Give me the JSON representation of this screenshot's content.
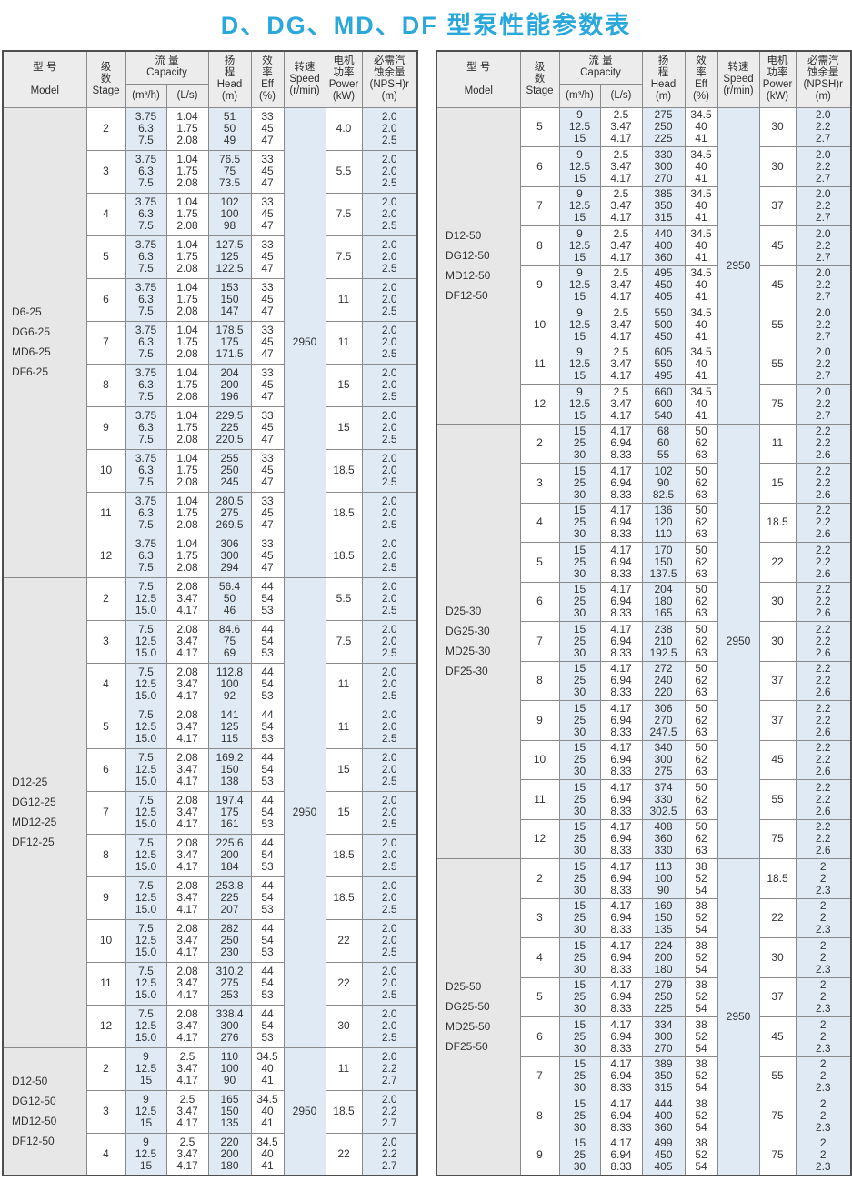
{
  "title": "D、DG、MD、DF 型泵性能参数表",
  "colors": {
    "title": "#29a8dc",
    "header_bg": "#ececec",
    "model_col_bg": "#e7e7e7",
    "shaded_col_bg": "#dfeaf5",
    "border": "#8a8a8a",
    "text": "#333333"
  },
  "header": {
    "model": "型  号\n\nModel",
    "stage": "级\n数\nStage",
    "capacity": "流 量\nCapacity",
    "unit_m3h": "(m³/h)",
    "unit_ls": "(L/s)",
    "head": "扬\n程\nHead\n(m)",
    "eff": "效\n率\nEff\n(%)",
    "speed": "转速\nSpeed\n(r/min)",
    "power": "电机\n功率\nPower\n(kW)",
    "npsh": "必需汽\n蚀余量\n(NPSH)r\n(m)"
  },
  "tables": [
    {
      "side": "left",
      "groups": [
        {
          "models": [
            "D6-25",
            "DG6-25",
            "MD6-25",
            "DF6-25"
          ],
          "speed": "2950",
          "m3h": [
            "3.75",
            "6.3",
            "7.5"
          ],
          "ls": [
            "1.04",
            "1.75",
            "2.08"
          ],
          "eff": [
            "33",
            "45",
            "47"
          ],
          "npsh": [
            "2.0",
            "2.0",
            "2.5"
          ],
          "rows": [
            {
              "stage": "2",
              "head": [
                "51",
                "50",
                "49"
              ],
              "power": "4.0"
            },
            {
              "stage": "3",
              "head": [
                "76.5",
                "75",
                "73.5"
              ],
              "power": "5.5"
            },
            {
              "stage": "4",
              "head": [
                "102",
                "100",
                "98"
              ],
              "power": "7.5"
            },
            {
              "stage": "5",
              "head": [
                "127.5",
                "125",
                "122.5"
              ],
              "power": "7.5"
            },
            {
              "stage": "6",
              "head": [
                "153",
                "150",
                "147"
              ],
              "power": "11"
            },
            {
              "stage": "7",
              "head": [
                "178.5",
                "175",
                "171.5"
              ],
              "power": "11"
            },
            {
              "stage": "8",
              "head": [
                "204",
                "200",
                "196"
              ],
              "power": "15"
            },
            {
              "stage": "9",
              "head": [
                "229.5",
                "225",
                "220.5"
              ],
              "power": "15"
            },
            {
              "stage": "10",
              "head": [
                "255",
                "250",
                "245"
              ],
              "power": "18.5"
            },
            {
              "stage": "11",
              "head": [
                "280.5",
                "275",
                "269.5"
              ],
              "power": "18.5"
            },
            {
              "stage": "12",
              "head": [
                "306",
                "300",
                "294"
              ],
              "power": "18.5"
            }
          ]
        },
        {
          "models": [
            "D12-25",
            "DG12-25",
            "MD12-25",
            "DF12-25"
          ],
          "speed": "2950",
          "m3h": [
            "7.5",
            "12.5",
            "15.0"
          ],
          "ls": [
            "2.08",
            "3.47",
            "4.17"
          ],
          "eff": [
            "44",
            "54",
            "53"
          ],
          "npsh": [
            "2.0",
            "2.0",
            "2.5"
          ],
          "rows": [
            {
              "stage": "2",
              "head": [
                "56.4",
                "50",
                "46"
              ],
              "power": "5.5"
            },
            {
              "stage": "3",
              "head": [
                "84.6",
                "75",
                "69"
              ],
              "power": "7.5"
            },
            {
              "stage": "4",
              "head": [
                "112.8",
                "100",
                "92"
              ],
              "power": "11"
            },
            {
              "stage": "5",
              "head": [
                "141",
                "125",
                "115"
              ],
              "power": "11"
            },
            {
              "stage": "6",
              "head": [
                "169.2",
                "150",
                "138"
              ],
              "power": "15"
            },
            {
              "stage": "7",
              "head": [
                "197.4",
                "175",
                "161"
              ],
              "power": "15"
            },
            {
              "stage": "8",
              "head": [
                "225.6",
                "200",
                "184"
              ],
              "power": "18.5"
            },
            {
              "stage": "9",
              "head": [
                "253.8",
                "225",
                "207"
              ],
              "power": "18.5"
            },
            {
              "stage": "10",
              "head": [
                "282",
                "250",
                "230"
              ],
              "power": "22"
            },
            {
              "stage": "11",
              "head": [
                "310.2",
                "275",
                "253"
              ],
              "power": "22"
            },
            {
              "stage": "12",
              "head": [
                "338.4",
                "300",
                "276"
              ],
              "power": "30"
            }
          ]
        },
        {
          "models": [
            "D12-50",
            "DG12-50",
            "MD12-50",
            "DF12-50"
          ],
          "speed": "2950",
          "m3h": [
            "9",
            "12.5",
            "15"
          ],
          "ls": [
            "2.5",
            "3.47",
            "4.17"
          ],
          "eff": [
            "34.5",
            "40",
            "41"
          ],
          "npsh": [
            "2.0",
            "2.2",
            "2.7"
          ],
          "rows": [
            {
              "stage": "2",
              "head": [
                "110",
                "100",
                "90"
              ],
              "power": "11"
            },
            {
              "stage": "3",
              "head": [
                "165",
                "150",
                "135"
              ],
              "power": "18.5"
            },
            {
              "stage": "4",
              "head": [
                "220",
                "200",
                "180"
              ],
              "power": "22"
            }
          ]
        }
      ]
    },
    {
      "side": "right",
      "groups": [
        {
          "models": [
            "D12-50",
            "DG12-50",
            "MD12-50",
            "DF12-50"
          ],
          "speed": "2950",
          "m3h": [
            "9",
            "12.5",
            "15"
          ],
          "ls": [
            "2.5",
            "3.47",
            "4.17"
          ],
          "eff": [
            "34.5",
            "40",
            "41"
          ],
          "npsh": [
            "2.0",
            "2.2",
            "2.7"
          ],
          "rows": [
            {
              "stage": "5",
              "head": [
                "275",
                "250",
                "225"
              ],
              "power": "30"
            },
            {
              "stage": "6",
              "head": [
                "330",
                "300",
                "270"
              ],
              "power": "30"
            },
            {
              "stage": "7",
              "head": [
                "385",
                "350",
                "315"
              ],
              "power": "37"
            },
            {
              "stage": "8",
              "head": [
                "440",
                "400",
                "360"
              ],
              "power": "45"
            },
            {
              "stage": "9",
              "head": [
                "495",
                "450",
                "405"
              ],
              "power": "45"
            },
            {
              "stage": "10",
              "head": [
                "550",
                "500",
                "450"
              ],
              "power": "55"
            },
            {
              "stage": "11",
              "head": [
                "605",
                "550",
                "495"
              ],
              "power": "55"
            },
            {
              "stage": "12",
              "head": [
                "660",
                "600",
                "540"
              ],
              "power": "75"
            }
          ]
        },
        {
          "models": [
            "D25-30",
            "DG25-30",
            "MD25-30",
            "DF25-30"
          ],
          "speed": "2950",
          "m3h": [
            "15",
            "25",
            "30"
          ],
          "ls": [
            "4.17",
            "6.94",
            "8.33"
          ],
          "eff": [
            "50",
            "62",
            "63"
          ],
          "npsh": [
            "2.2",
            "2.2",
            "2.6"
          ],
          "rows": [
            {
              "stage": "2",
              "head": [
                "68",
                "60",
                "55"
              ],
              "power": "11"
            },
            {
              "stage": "3",
              "head": [
                "102",
                "90",
                "82.5"
              ],
              "power": "15"
            },
            {
              "stage": "4",
              "head": [
                "136",
                "120",
                "110"
              ],
              "power": "18.5"
            },
            {
              "stage": "5",
              "head": [
                "170",
                "150",
                "137.5"
              ],
              "power": "22"
            },
            {
              "stage": "6",
              "head": [
                "204",
                "180",
                "165"
              ],
              "power": "30"
            },
            {
              "stage": "7",
              "head": [
                "238",
                "210",
                "192.5"
              ],
              "power": "30"
            },
            {
              "stage": "8",
              "head": [
                "272",
                "240",
                "220"
              ],
              "power": "37"
            },
            {
              "stage": "9",
              "head": [
                "306",
                "270",
                "247.5"
              ],
              "power": "37"
            },
            {
              "stage": "10",
              "head": [
                "340",
                "300",
                "275"
              ],
              "power": "45"
            },
            {
              "stage": "11",
              "head": [
                "374",
                "330",
                "302.5"
              ],
              "power": "55"
            },
            {
              "stage": "12",
              "head": [
                "408",
                "360",
                "330"
              ],
              "power": "75"
            }
          ]
        },
        {
          "models": [
            "D25-50",
            "DG25-50",
            "MD25-50",
            "DF25-50"
          ],
          "speed": "2950",
          "m3h": [
            "15",
            "25",
            "30"
          ],
          "ls": [
            "4.17",
            "6.94",
            "8.33"
          ],
          "eff": [
            "38",
            "52",
            "54"
          ],
          "npsh": [
            "2",
            "2",
            "2.3"
          ],
          "rows": [
            {
              "stage": "2",
              "head": [
                "113",
                "100",
                "90"
              ],
              "power": "18.5"
            },
            {
              "stage": "3",
              "head": [
                "169",
                "150",
                "135"
              ],
              "power": "22"
            },
            {
              "stage": "4",
              "head": [
                "224",
                "200",
                "180"
              ],
              "power": "30"
            },
            {
              "stage": "5",
              "head": [
                "279",
                "250",
                "225"
              ],
              "power": "37"
            },
            {
              "stage": "6",
              "head": [
                "334",
                "300",
                "270"
              ],
              "power": "45"
            },
            {
              "stage": "7",
              "head": [
                "389",
                "350",
                "315"
              ],
              "power": "55"
            },
            {
              "stage": "8",
              "head": [
                "444",
                "400",
                "360"
              ],
              "power": "75"
            },
            {
              "stage": "9",
              "head": [
                "499",
                "450",
                "405"
              ],
              "power": "75"
            }
          ]
        }
      ]
    }
  ]
}
